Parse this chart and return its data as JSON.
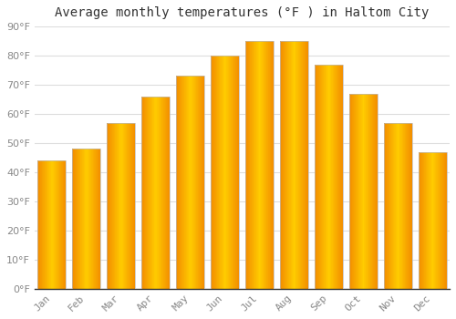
{
  "title": "Average monthly temperatures (°F ) in Haltom City",
  "months": [
    "Jan",
    "Feb",
    "Mar",
    "Apr",
    "May",
    "Jun",
    "Jul",
    "Aug",
    "Sep",
    "Oct",
    "Nov",
    "Dec"
  ],
  "values": [
    44,
    48,
    57,
    66,
    73,
    80,
    85,
    85,
    77,
    67,
    57,
    47
  ],
  "bar_color_center": "#FFB300",
  "bar_color_edge": "#FF8C00",
  "bar_color_left": "#FFA500",
  "ylim": [
    0,
    90
  ],
  "yticks": [
    0,
    10,
    20,
    30,
    40,
    50,
    60,
    70,
    80,
    90
  ],
  "background_color": "#FFFFFF",
  "grid_color": "#DDDDDD",
  "title_fontsize": 10,
  "tick_fontsize": 8,
  "tick_font_color": "#888888",
  "title_color": "#333333",
  "bar_width": 0.82
}
